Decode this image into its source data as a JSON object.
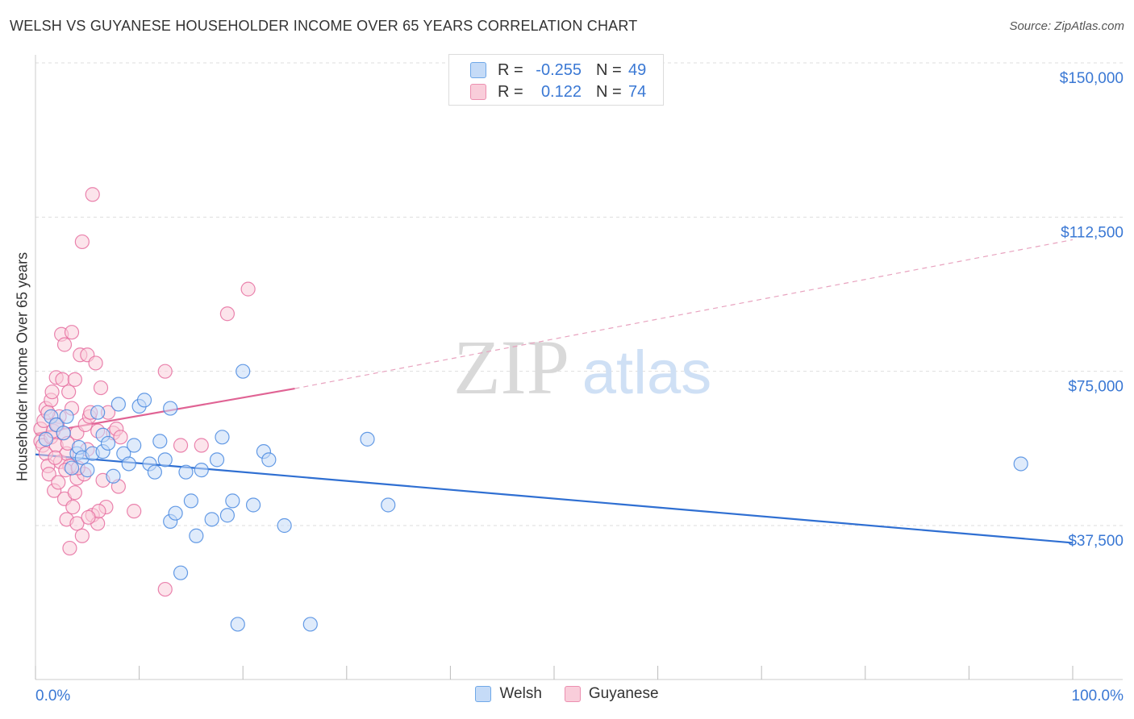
{
  "title": "WELSH VS GUYANESE HOUSEHOLDER INCOME OVER 65 YEARS CORRELATION CHART",
  "source": "Source: ZipAtlas.com",
  "watermark": {
    "zip": "ZIP",
    "atlas": "atlas"
  },
  "legend_top": [
    {
      "r_label": "R =",
      "r_value": "-0.255",
      "n_label": "N =",
      "n_value": "49",
      "color": "#6fa8e8",
      "fill": "#c5dbf7"
    },
    {
      "r_label": "R =",
      "r_value": "0.122",
      "n_label": "N =",
      "n_value": "74",
      "color": "#ec8fb0",
      "fill": "#f9cdda"
    }
  ],
  "legend_bottom": [
    {
      "label": "Welsh",
      "color": "#6fa8e8",
      "fill": "#c5dbf7"
    },
    {
      "label": "Guyanese",
      "color": "#ec8fb0",
      "fill": "#f9cdda"
    }
  ],
  "chart_data": {
    "type": "scatter",
    "title": "WELSH VS GUYANESE HOUSEHOLDER INCOME OVER 65 YEARS CORRELATION CHART",
    "xlabel": "",
    "ylabel": "Householder Income Over 65 years",
    "xlim": [
      0,
      100
    ],
    "ylim": [
      0,
      155000
    ],
    "x_tick_labels": [
      "0.0%",
      "100.0%"
    ],
    "y_ticks": [
      37500,
      75000,
      112500,
      150000
    ],
    "y_tick_labels": [
      "$37,500",
      "$75,000",
      "$112,500",
      "$150,000"
    ],
    "grid": true,
    "series": [
      {
        "name": "Welsh",
        "color": "#4a8ae0",
        "fill": "#c5dbf7",
        "trend": {
          "x0": 0,
          "y0": 54800,
          "x1": 100,
          "y1": 33300,
          "dashed_to": 100
        },
        "points": [
          [
            1.5,
            64000
          ],
          [
            2,
            62000
          ],
          [
            3,
            64000
          ],
          [
            2.7,
            60000
          ],
          [
            4,
            55000
          ],
          [
            4.2,
            56500
          ],
          [
            4.5,
            54000
          ],
          [
            5,
            51000
          ],
          [
            5.5,
            55000
          ],
          [
            6,
            65000
          ],
          [
            6.5,
            59500
          ],
          [
            6.5,
            55500
          ],
          [
            7,
            57500
          ],
          [
            7.5,
            49500
          ],
          [
            8,
            67000
          ],
          [
            8.5,
            55000
          ],
          [
            9,
            52500
          ],
          [
            9.5,
            57000
          ],
          [
            10,
            66500
          ],
          [
            10.5,
            68000
          ],
          [
            11,
            52500
          ],
          [
            11.5,
            50500
          ],
          [
            12,
            58000
          ],
          [
            12.5,
            53500
          ],
          [
            13,
            66000
          ],
          [
            13,
            38500
          ],
          [
            13.5,
            40500
          ],
          [
            14,
            26000
          ],
          [
            14.5,
            50500
          ],
          [
            15,
            43500
          ],
          [
            15.5,
            35000
          ],
          [
            16,
            51000
          ],
          [
            17,
            39000
          ],
          [
            17.5,
            53500
          ],
          [
            18,
            59000
          ],
          [
            18.5,
            40000
          ],
          [
            19,
            43500
          ],
          [
            19.5,
            13500
          ],
          [
            20,
            75000
          ],
          [
            21,
            42500
          ],
          [
            22,
            55500
          ],
          [
            22.5,
            53500
          ],
          [
            24,
            37500
          ],
          [
            26.5,
            13500
          ],
          [
            32,
            58500
          ],
          [
            34,
            42500
          ],
          [
            95,
            52500
          ],
          [
            1,
            58500
          ],
          [
            3.5,
            51500
          ]
        ],
        "r": -0.255,
        "n": 49
      },
      {
        "name": "Guyanese",
        "color": "#e66fa0",
        "fill": "#f9cdda",
        "trend": {
          "x0": 0,
          "y0": 59800,
          "x1": 25,
          "y1": 70800,
          "dashed_to": 100,
          "y_end": 107000
        },
        "points": [
          [
            0.5,
            58000
          ],
          [
            0.5,
            61000
          ],
          [
            0.7,
            57000
          ],
          [
            0.8,
            63000
          ],
          [
            1,
            55000
          ],
          [
            1,
            66000
          ],
          [
            1.2,
            52000
          ],
          [
            1.3,
            50000
          ],
          [
            1.5,
            59000
          ],
          [
            1.5,
            68000
          ],
          [
            1.6,
            70000
          ],
          [
            1.8,
            46000
          ],
          [
            2,
            62000
          ],
          [
            2,
            73500
          ],
          [
            2,
            57000
          ],
          [
            2.2,
            48000
          ],
          [
            2.3,
            64000
          ],
          [
            2.4,
            53000
          ],
          [
            2.5,
            84000
          ],
          [
            2.6,
            73000
          ],
          [
            2.7,
            60000
          ],
          [
            2.8,
            81500
          ],
          [
            2.8,
            44000
          ],
          [
            3,
            39000
          ],
          [
            3,
            55000
          ],
          [
            3.2,
            70000
          ],
          [
            3.3,
            52000
          ],
          [
            3.3,
            32000
          ],
          [
            3.5,
            84500
          ],
          [
            3.5,
            66000
          ],
          [
            3.6,
            42000
          ],
          [
            3.8,
            45500
          ],
          [
            3.8,
            73000
          ],
          [
            4,
            60000
          ],
          [
            4,
            38000
          ],
          [
            4,
            49000
          ],
          [
            4.3,
            79000
          ],
          [
            4.5,
            35000
          ],
          [
            4.5,
            106500
          ],
          [
            4.7,
            50000
          ],
          [
            4.8,
            62000
          ],
          [
            5,
            79000
          ],
          [
            5,
            56000
          ],
          [
            5.2,
            64000
          ],
          [
            5.3,
            65000
          ],
          [
            5.5,
            40000
          ],
          [
            5.5,
            118000
          ],
          [
            5.8,
            77000
          ],
          [
            6,
            38000
          ],
          [
            6,
            60500
          ],
          [
            6.3,
            71000
          ],
          [
            6.5,
            48500
          ],
          [
            6.8,
            42000
          ],
          [
            7,
            65000
          ],
          [
            7.5,
            60000
          ],
          [
            7.8,
            61000
          ],
          [
            8,
            47000
          ],
          [
            8.2,
            59000
          ],
          [
            9.5,
            41000
          ],
          [
            12.5,
            75000
          ],
          [
            12.5,
            22000
          ],
          [
            14,
            57000
          ],
          [
            16,
            57000
          ],
          [
            18.5,
            89000
          ],
          [
            20.5,
            95000
          ],
          [
            1.2,
            65000
          ],
          [
            1.7,
            60500
          ],
          [
            2.1,
            62000
          ],
          [
            2.9,
            51000
          ],
          [
            3.1,
            57500
          ],
          [
            1.9,
            54000
          ],
          [
            6.1,
            41000
          ],
          [
            4.1,
            51500
          ],
          [
            5.1,
            39500
          ]
        ],
        "r": 0.122,
        "n": 74
      }
    ]
  }
}
